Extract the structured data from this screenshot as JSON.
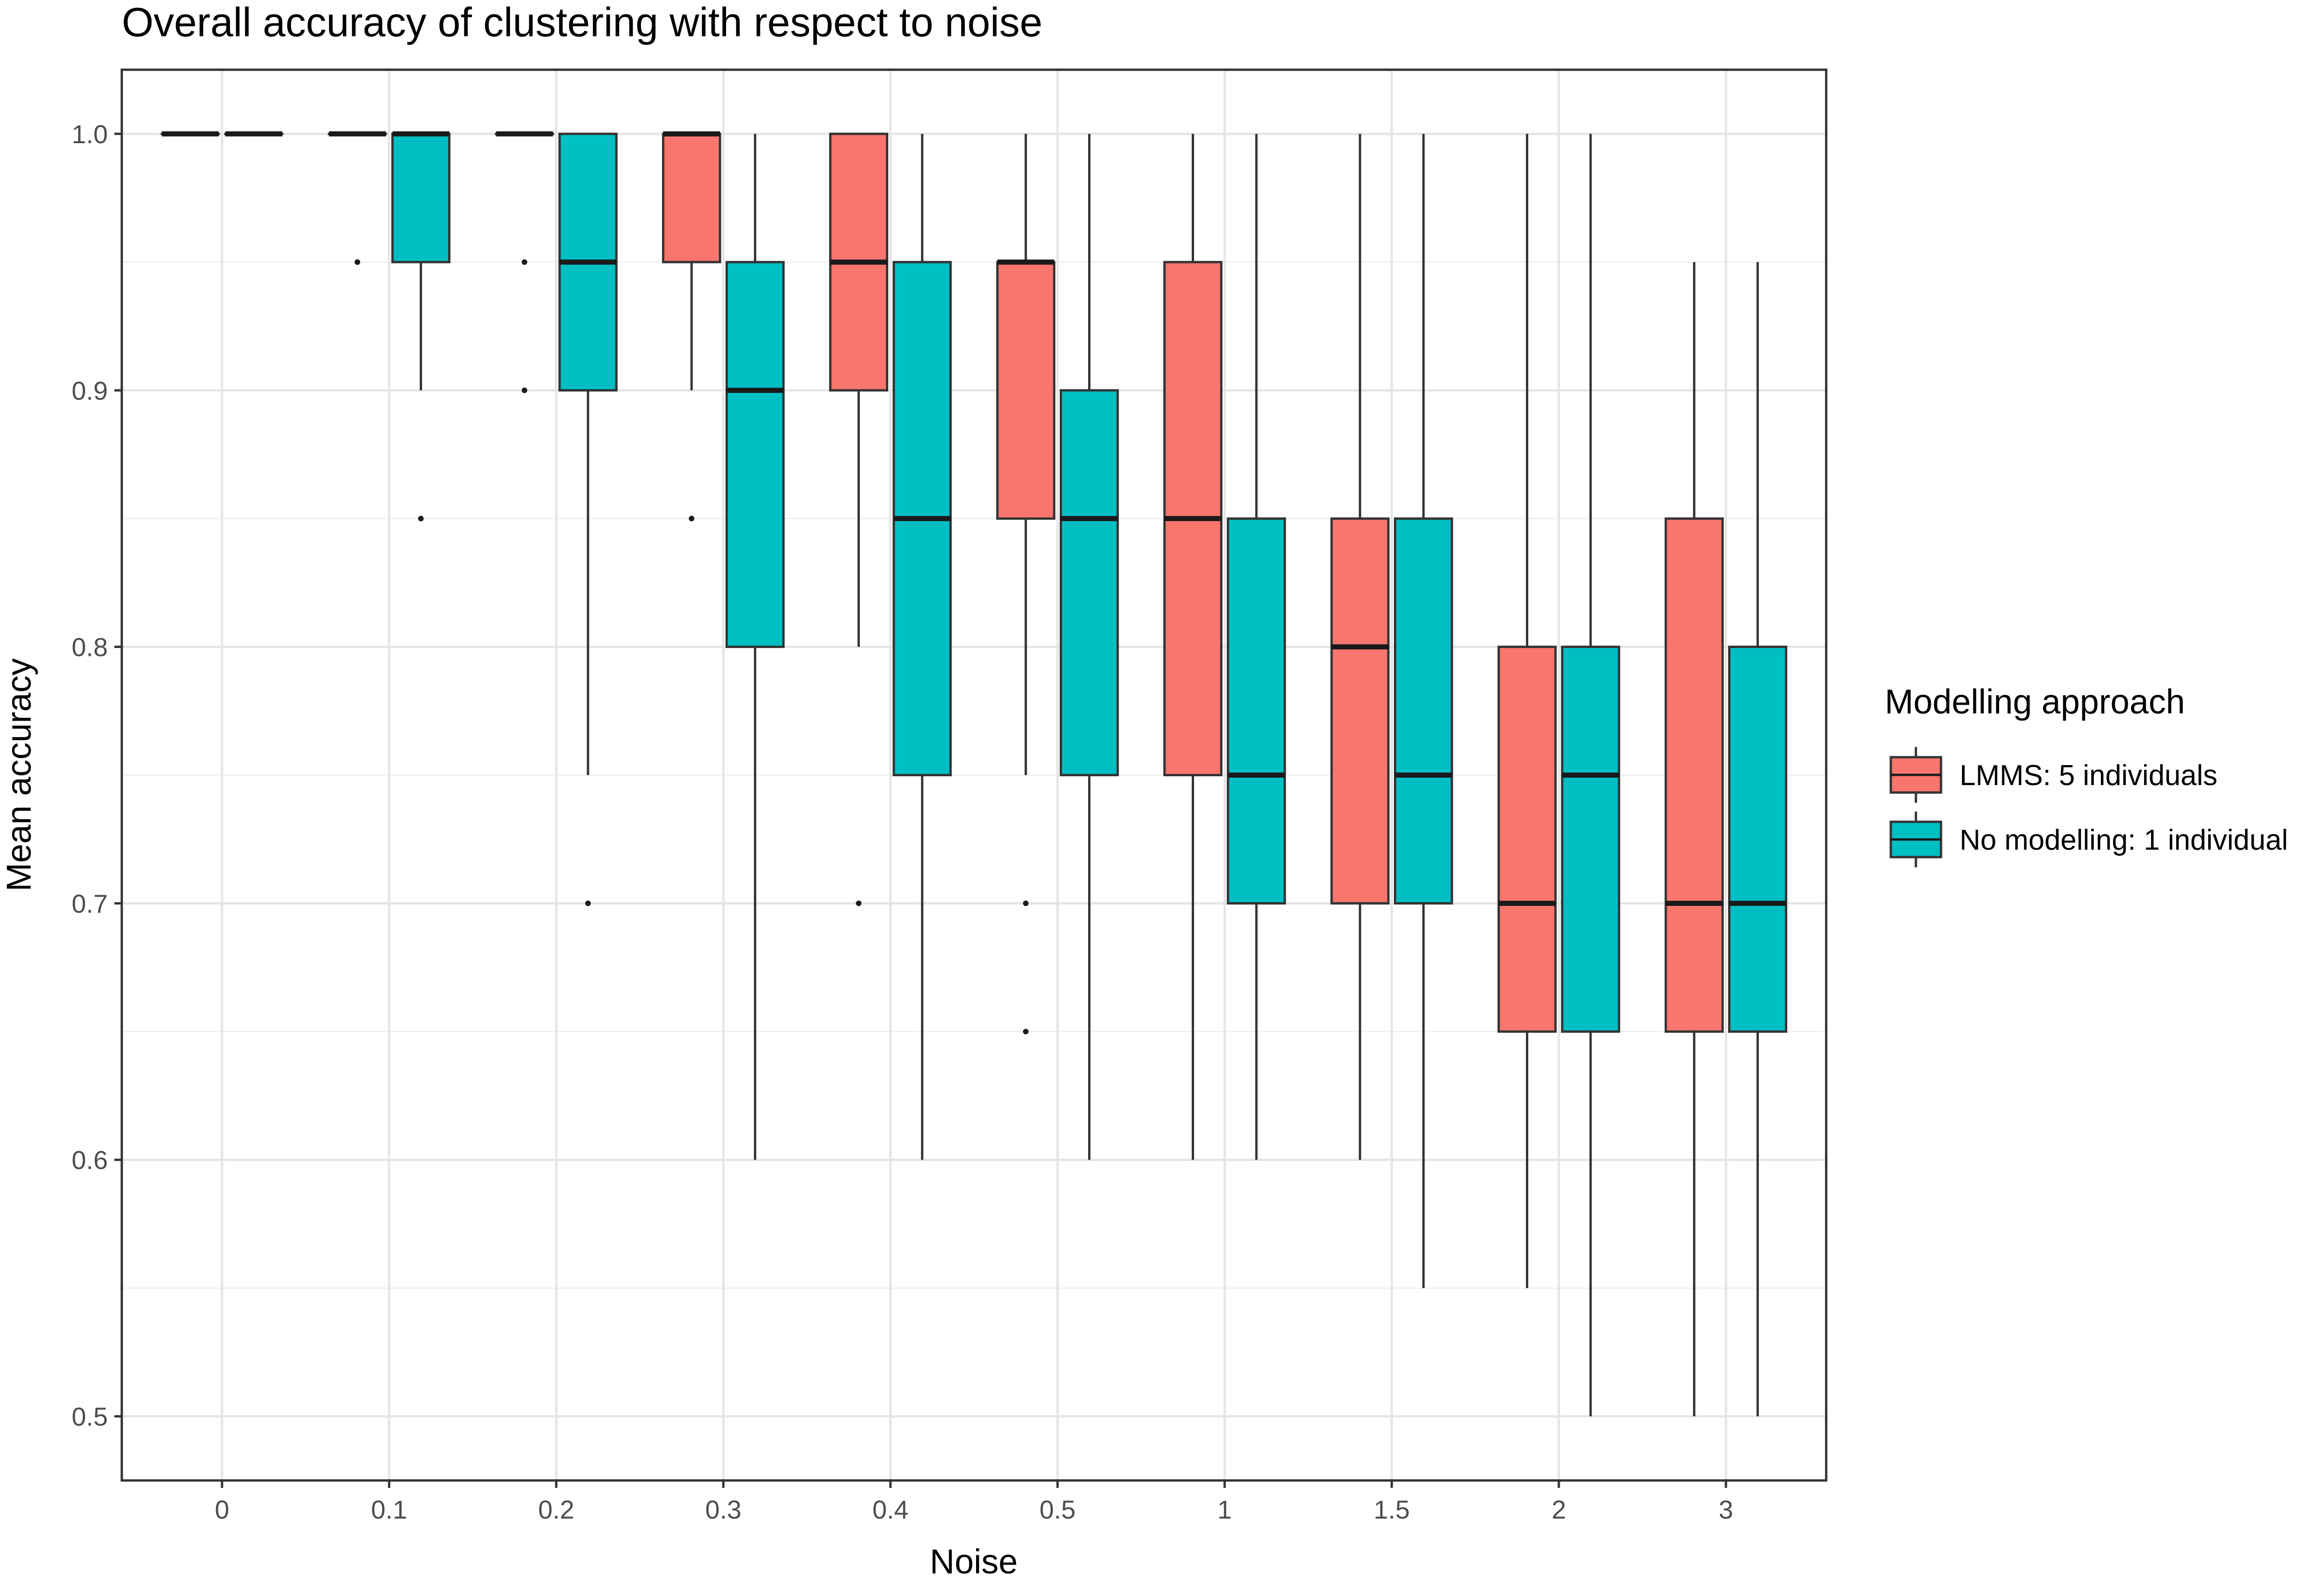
{
  "chart_data": {
    "type": "boxplot",
    "title": "Overall accuracy of clustering with respect to noise",
    "xlabel": "Noise",
    "ylabel": "Mean accuracy",
    "categories": [
      "0",
      "0.1",
      "0.2",
      "0.3",
      "0.4",
      "0.5",
      "1",
      "1.5",
      "2",
      "3"
    ],
    "yticks": [
      0.5,
      0.6,
      0.7,
      0.8,
      0.9,
      1.0
    ],
    "ytick_labels": [
      "0.5",
      "0.6",
      "0.7",
      "0.8",
      "0.9",
      "1.0"
    ],
    "ylim": [
      0.475,
      1.025
    ],
    "grid": true,
    "legend": {
      "title": "Modelling approach",
      "position": "right"
    },
    "series": [
      {
        "name": "LMMS: 5 individuals",
        "color": "#F8766D",
        "boxes": [
          {
            "min": 1.0,
            "q1": 1.0,
            "median": 1.0,
            "q3": 1.0,
            "max": 1.0,
            "outliers": []
          },
          {
            "min": 1.0,
            "q1": 1.0,
            "median": 1.0,
            "q3": 1.0,
            "max": 1.0,
            "outliers": [
              0.95
            ]
          },
          {
            "min": 1.0,
            "q1": 1.0,
            "median": 1.0,
            "q3": 1.0,
            "max": 1.0,
            "outliers": [
              0.95,
              0.9
            ]
          },
          {
            "min": 0.9,
            "q1": 0.95,
            "median": 1.0,
            "q3": 1.0,
            "max": 1.0,
            "outliers": [
              0.85
            ]
          },
          {
            "min": 0.8,
            "q1": 0.9,
            "median": 0.95,
            "q3": 1.0,
            "max": 1.0,
            "outliers": [
              0.7
            ]
          },
          {
            "min": 0.75,
            "q1": 0.85,
            "median": 0.95,
            "q3": 0.95,
            "max": 1.0,
            "outliers": [
              0.7,
              0.65
            ]
          },
          {
            "min": 0.6,
            "q1": 0.75,
            "median": 0.85,
            "q3": 0.95,
            "max": 1.0,
            "outliers": []
          },
          {
            "min": 0.6,
            "q1": 0.7,
            "median": 0.8,
            "q3": 0.85,
            "max": 1.0,
            "outliers": []
          },
          {
            "min": 0.55,
            "q1": 0.65,
            "median": 0.7,
            "q3": 0.8,
            "max": 1.0,
            "outliers": []
          },
          {
            "min": 0.5,
            "q1": 0.65,
            "median": 0.7,
            "q3": 0.85,
            "max": 0.95,
            "outliers": []
          }
        ]
      },
      {
        "name": "No modelling: 1 individual",
        "color": "#00BFC4",
        "boxes": [
          {
            "min": 1.0,
            "q1": 1.0,
            "median": 1.0,
            "q3": 1.0,
            "max": 1.0,
            "outliers": []
          },
          {
            "min": 0.9,
            "q1": 0.95,
            "median": 1.0,
            "q3": 1.0,
            "max": 1.0,
            "outliers": [
              0.85
            ]
          },
          {
            "min": 0.75,
            "q1": 0.9,
            "median": 0.95,
            "q3": 1.0,
            "max": 1.0,
            "outliers": [
              0.7
            ]
          },
          {
            "min": 0.6,
            "q1": 0.8,
            "median": 0.9,
            "q3": 0.95,
            "max": 1.0,
            "outliers": []
          },
          {
            "min": 0.6,
            "q1": 0.75,
            "median": 0.85,
            "q3": 0.95,
            "max": 1.0,
            "outliers": []
          },
          {
            "min": 0.6,
            "q1": 0.75,
            "median": 0.85,
            "q3": 0.9,
            "max": 1.0,
            "outliers": []
          },
          {
            "min": 0.6,
            "q1": 0.7,
            "median": 0.75,
            "q3": 0.85,
            "max": 1.0,
            "outliers": []
          },
          {
            "min": 0.55,
            "q1": 0.7,
            "median": 0.75,
            "q3": 0.85,
            "max": 1.0,
            "outliers": []
          },
          {
            "min": 0.5,
            "q1": 0.65,
            "median": 0.75,
            "q3": 0.8,
            "max": 1.0,
            "outliers": []
          },
          {
            "min": 0.5,
            "q1": 0.65,
            "median": 0.7,
            "q3": 0.8,
            "max": 0.95,
            "outliers": []
          }
        ]
      }
    ]
  }
}
